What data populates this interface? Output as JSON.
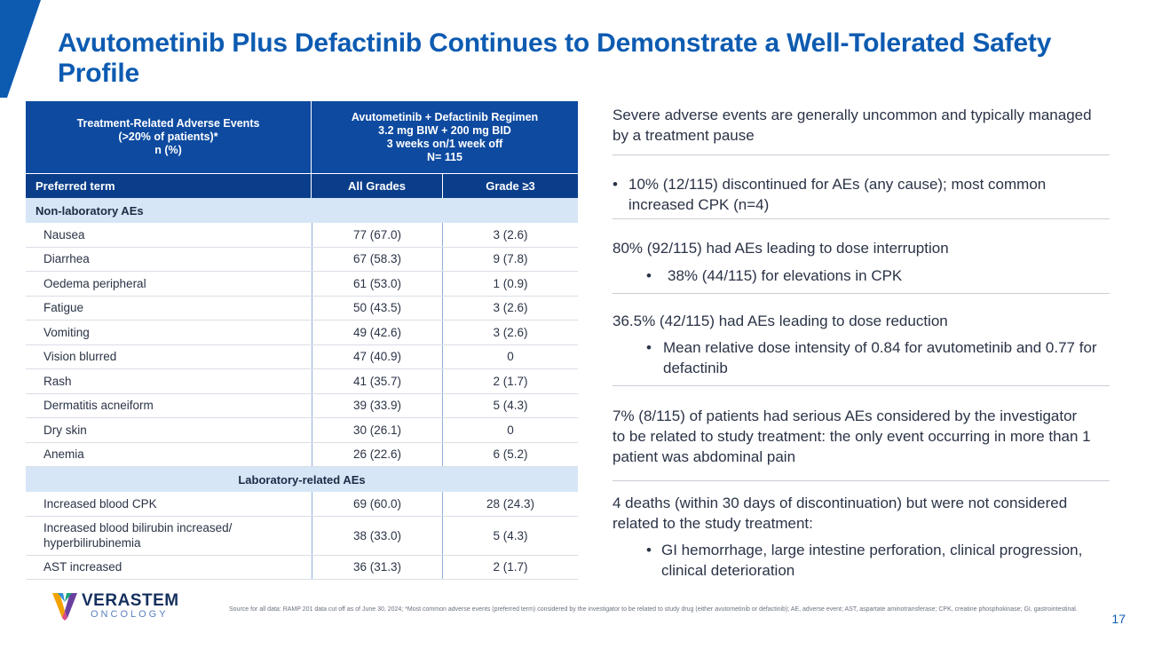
{
  "title": "Avutometinib Plus Defactinib Continues to Demonstrate a Well-Tolerated Safety Profile",
  "colors": {
    "brand_blue": "#0d5bb1",
    "header_blue": "#0d4aa0",
    "section_fill": "#d6e6f7"
  },
  "table": {
    "header_left": [
      "Treatment-Related Adverse Events",
      "(>20% of patients)*",
      "n (%)"
    ],
    "header_right": [
      "Avutometinib + Defactinib Regimen",
      "3.2 mg BIW + 200 mg BID",
      "3 weeks on/1 week off",
      "N= 115"
    ],
    "col_term": "Preferred term",
    "col_all": "All Grades",
    "col_g3": "Grade ≥3",
    "section_nonlab": "Non-laboratory AEs",
    "nonlab_rows": [
      {
        "term": "Nausea",
        "all": "77 (67.0)",
        "g3": "3 (2.6)"
      },
      {
        "term": "Diarrhea",
        "all": "67 (58.3)",
        "g3": "9 (7.8)"
      },
      {
        "term": "Oedema peripheral",
        "all": "61 (53.0)",
        "g3": "1 (0.9)"
      },
      {
        "term": "Fatigue",
        "all": "50 (43.5)",
        "g3": "3 (2.6)"
      },
      {
        "term": "Vomiting",
        "all": "49 (42.6)",
        "g3": "3 (2.6)"
      },
      {
        "term": "Vision blurred",
        "all": "47 (40.9)",
        "g3": "0"
      },
      {
        "term": "Rash",
        "all": "41 (35.7)",
        "g3": "2 (1.7)"
      },
      {
        "term": "Dermatitis acneiform",
        "all": "39 (33.9)",
        "g3": "5 (4.3)"
      },
      {
        "term": "Dry skin",
        "all": "30 (26.1)",
        "g3": "0"
      },
      {
        "term": "Anemia",
        "all": "26 (22.6)",
        "g3": "6 (5.2)"
      }
    ],
    "section_lab": "Laboratory-related AEs",
    "lab_rows": [
      {
        "term": "Increased blood CPK",
        "all": "69 (60.0)",
        "g3": "28 (24.3)"
      },
      {
        "term": "Increased blood bilirubin increased/ hyperbilirubinemia",
        "all": "38 (33.0)",
        "g3": "5 (4.3)"
      },
      {
        "term": "AST increased",
        "all": "36 (31.3)",
        "g3": "2 (1.7)"
      }
    ]
  },
  "right": {
    "b1": "Severe adverse events are generally uncommon and typically managed by a treatment pause",
    "b2": "10% (12/115) discontinued for AEs (any cause); most common increased CPK (n=4)",
    "b3": "80% (92/115) had AEs leading to dose interruption",
    "b3_sub": "38% (44/115) for elevations in CPK",
    "b4": "36.5% (42/115) had AEs leading to dose reduction",
    "b4_sub": "Mean relative dose intensity of 0.84 for avutometinib and 0.77 for defactinib",
    "b5": "7% (8/115) of patients had serious AEs considered by the investigator to be related to study treatment: the only event occurring in more than 1 patient was abdominal pain",
    "b6": "4 deaths (within 30 days of discontinuation) but were not considered related to the study treatment:",
    "b6_sub": "GI hemorrhage, large intestine perforation, clinical progression, clinical deterioration"
  },
  "logo": {
    "line1": "VERASTEM",
    "line2": "ONCOLOGY"
  },
  "source": "Source for all data: RAMP 201 data cut off as of June 30, 2024; *Most common adverse events (preferred term) considered by the investigator to be related to study drug (either avutometinib or defactinib); AE, adverse event; AST, aspartate aminotransferase; CPK, creatine phosphokinase; GI, gastrointestinal.",
  "page_number": "17"
}
